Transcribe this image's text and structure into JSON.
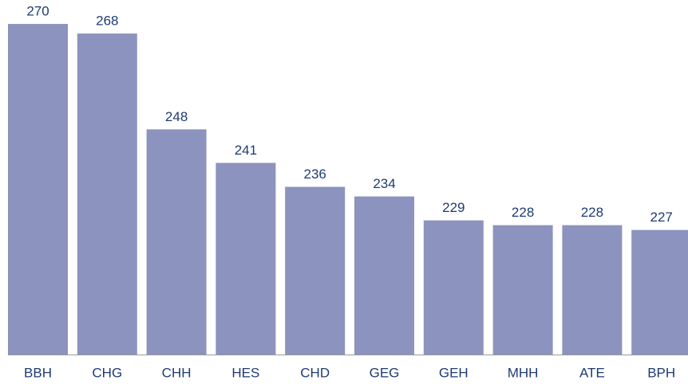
{
  "chart_data": {
    "type": "bar",
    "categories": [
      "BBH",
      "CHG",
      "CHH",
      "HES",
      "CHD",
      "GEG",
      "GEH",
      "MHH",
      "ATE",
      "BPH"
    ],
    "values": [
      270,
      268,
      248,
      241,
      236,
      234,
      229,
      228,
      228,
      227
    ],
    "color": "#8b93be",
    "ylim": [
      201,
      275
    ]
  }
}
